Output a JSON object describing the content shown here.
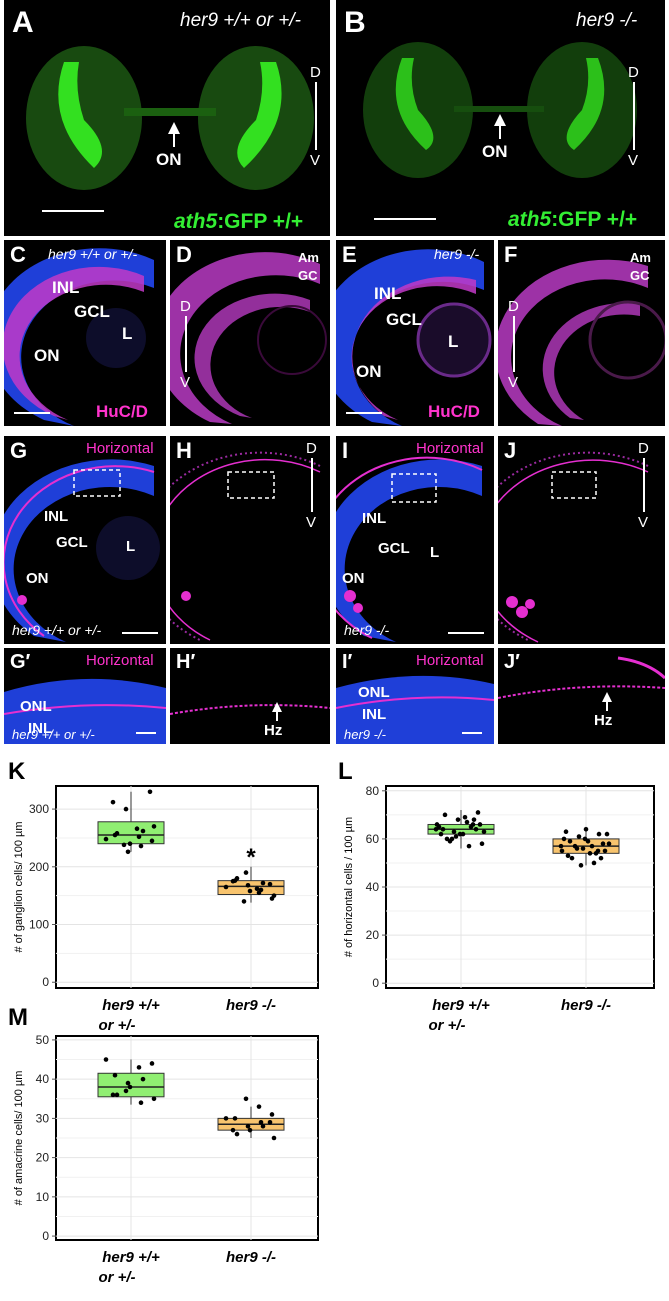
{
  "panels": {
    "A": {
      "label": "A",
      "genotype": "her9 +/+ or +/-",
      "on": "ON",
      "gfp_gene": "ath5",
      "gfp_rest": ":GFP +/+",
      "d": "D",
      "v": "V"
    },
    "B": {
      "label": "B",
      "genotype": "her9 -/-",
      "on": "ON",
      "gfp_gene": "ath5",
      "gfp_rest": ":GFP +/+",
      "d": "D",
      "v": "V"
    },
    "C": {
      "label": "C",
      "genotype": "her9 +/+ or +/-",
      "inl": "INL",
      "gcl": "GCL",
      "l": "L",
      "on": "ON",
      "stain": "HuC/D"
    },
    "D": {
      "label": "D",
      "am": "Am",
      "gc": "GC",
      "d": "D",
      "v": "V"
    },
    "E": {
      "label": "E",
      "genotype": "her9 -/-",
      "inl": "INL",
      "gcl": "GCL",
      "l": "L",
      "on": "ON",
      "stain": "HuC/D"
    },
    "F": {
      "label": "F",
      "am": "Am",
      "gc": "GC",
      "d": "D",
      "v": "V"
    },
    "G": {
      "label": "G",
      "stain": "Horizontal",
      "inl": "INL",
      "gcl": "GCL",
      "l": "L",
      "on": "ON",
      "genotype": "her9 +/+ or +/-"
    },
    "H": {
      "label": "H",
      "d": "D",
      "v": "V"
    },
    "I": {
      "label": "I",
      "stain": "Horizontal",
      "inl": "INL",
      "gcl": "GCL",
      "l": "L",
      "on": "ON",
      "genotype": "her9 -/-"
    },
    "J": {
      "label": "J",
      "d": "D",
      "v": "V"
    },
    "Gp": {
      "label": "G′",
      "stain": "Horizontal",
      "onl": "ONL",
      "inl": "INL",
      "genotype": "her9 +/+ or +/-"
    },
    "Hp": {
      "label": "H′",
      "hz": "Hz"
    },
    "Ip": {
      "label": "I′",
      "stain": "Horizontal",
      "onl": "ONL",
      "inl": "INL",
      "genotype": "her9 -/-"
    },
    "Jp": {
      "label": "J′",
      "hz": "Hz"
    }
  },
  "colors": {
    "wt_box": "#90ee72",
    "mut_box": "#f8c46e",
    "nuclear": "#2a4cff",
    "marker": "#e52fd0",
    "gfp": "#33ee33"
  },
  "chart_data": [
    {
      "label": "K",
      "type": "box",
      "ylabel": "# of ganglion cells/ 100 µm",
      "categories": [
        "her9 +/+ or +/-",
        "her9 -/-"
      ],
      "ylim": [
        -10,
        340
      ],
      "yticks": [
        0,
        100,
        200,
        300
      ],
      "significance": "*",
      "boxes": [
        {
          "q1": 240,
          "median": 255,
          "q3": 278,
          "whisker_low": 226,
          "whisker_high": 330
        },
        {
          "q1": 152,
          "median": 166,
          "q3": 176,
          "whisker_low": 138,
          "whisker_high": 200
        }
      ],
      "points": [
        [
          248,
          262,
          240,
          258,
          270,
          236,
          226,
          255,
          245,
          252,
          300,
          312,
          330,
          266,
          238
        ],
        [
          165,
          172,
          158,
          180,
          150,
          160,
          168,
          176,
          145,
          155,
          190,
          175,
          170,
          162,
          140
        ]
      ]
    },
    {
      "label": "L",
      "type": "box",
      "ylabel": "# of horizontal cells / 100 µm",
      "categories": [
        "her9 +/+ or +/-",
        "her9 -/-"
      ],
      "ylim": [
        -2,
        82
      ],
      "yticks": [
        0,
        20,
        40,
        60,
        80
      ],
      "boxes": [
        {
          "q1": 62,
          "median": 64,
          "q3": 66,
          "whisker_low": 56,
          "whisker_high": 72
        },
        {
          "q1": 54,
          "median": 57,
          "q3": 60,
          "whisker_low": 49,
          "whisker_high": 65
        }
      ],
      "points": [
        [
          64,
          66,
          62,
          60,
          63,
          65,
          68,
          70,
          58,
          57,
          61,
          64,
          66,
          67,
          63,
          62,
          71,
          69,
          60,
          65,
          64,
          62,
          59,
          66,
          68
        ],
        [
          57,
          55,
          60,
          52,
          58,
          54,
          56,
          59,
          62,
          50,
          49,
          53,
          55,
          57,
          61,
          63,
          58,
          54,
          56,
          60,
          52,
          59,
          57,
          55,
          62,
          64
        ]
      ]
    },
    {
      "label": "M",
      "type": "box",
      "ylabel": "# of amacrine cells/ 100 µm",
      "categories": [
        "her9 +/+ or +/-",
        "her9 -/-"
      ],
      "ylim": [
        -1,
        51
      ],
      "yticks": [
        0,
        10,
        20,
        30,
        40,
        50
      ],
      "boxes": [
        {
          "q1": 35.5,
          "median": 38,
          "q3": 41.5,
          "whisker_low": 33.5,
          "whisker_high": 45
        },
        {
          "q1": 27,
          "median": 28.5,
          "q3": 30,
          "whisker_low": 25,
          "whisker_high": 33
        }
      ],
      "points": [
        [
          45,
          40,
          38,
          36,
          35,
          34,
          39,
          41,
          44,
          43,
          37,
          36
        ],
        [
          30,
          28,
          27,
          26,
          25,
          29,
          28,
          30,
          31,
          33,
          35,
          27,
          29
        ]
      ]
    }
  ]
}
